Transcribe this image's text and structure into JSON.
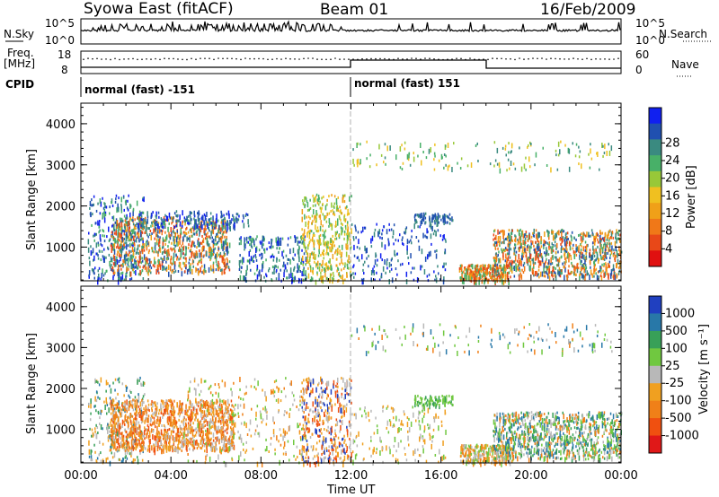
{
  "header": {
    "station": "Syowa East (fitACF)",
    "beam": "Beam 01",
    "date": "16/Feb/2009"
  },
  "strip_labels": {
    "nsky": "N.Sky",
    "nsearch": "N.Search",
    "freq_line1": "Freq.",
    "freq_line2": "[MHz]",
    "nave": "Nave",
    "cpid": "CPID",
    "cpid_left": "normal (fast) -151",
    "cpid_right": "normal (fast) 151",
    "noise_tick_top": "10^5",
    "noise_tick_bottom": "10^0",
    "freq_tick_top": "18",
    "freq_tick_bottom": "8",
    "nave_tick_top": "60",
    "nave_tick_bottom": "0"
  },
  "chart_data": [
    {
      "type": "heatmap",
      "title": "",
      "ylabel": "Slant Range [km]",
      "xlabel": "Time UT",
      "xlim": [
        "00:00",
        "24:00"
      ],
      "ylim": [
        180,
        4500
      ],
      "x_ticks": [
        "00:00",
        "04:00",
        "08:00",
        "12:00",
        "16:00",
        "20:00",
        "00:00"
      ],
      "y_ticks": [
        "1000",
        "2000",
        "3000",
        "4000"
      ],
      "colorbar": {
        "label": "Power [dB]",
        "ticks": [
          "4",
          "8",
          "12",
          "16",
          "20",
          "24",
          "28"
        ],
        "colors": [
          "#1020f0",
          "#2050b0",
          "#3a8a80",
          "#48b068",
          "#98c838",
          "#f0c020",
          "#f0a018",
          "#f07818",
          "#e84818",
          "#e01010"
        ]
      }
    },
    {
      "type": "heatmap",
      "title": "",
      "ylabel": "Slant Range [km]",
      "xlabel": "Time UT",
      "xlim": [
        "00:00",
        "24:00"
      ],
      "ylim": [
        180,
        4500
      ],
      "x_ticks": [
        "00:00",
        "04:00",
        "08:00",
        "12:00",
        "16:00",
        "20:00",
        "00:00"
      ],
      "y_ticks": [
        "1000",
        "2000",
        "3000",
        "4000"
      ],
      "colorbar": {
        "label": "Velocity [m s⁻¹]",
        "ticks": [
          "1000",
          "500",
          "100",
          "25",
          "-25",
          "-100",
          "-500",
          "-1000"
        ],
        "colors": [
          "#2040c0",
          "#2878a8",
          "#38a058",
          "#70c840",
          "#b8b8b8",
          "#f0a020",
          "#f08018",
          "#f05010",
          "#e01818"
        ]
      }
    }
  ],
  "scatter_regions": {
    "power": [
      {
        "t0": 0.3,
        "t1": 2.8,
        "r0": 200,
        "r1": 2300,
        "n": 320,
        "colors": [
          "#2050b0",
          "#3a8a80",
          "#48b068",
          "#1020f0"
        ]
      },
      {
        "t0": 1.3,
        "t1": 6.6,
        "r0": 400,
        "r1": 1750,
        "n": 900,
        "colors": [
          "#3a8a80",
          "#48b068",
          "#f0a018",
          "#f07818",
          "#2050b0",
          "#e84818"
        ]
      },
      {
        "t0": 2.5,
        "t1": 7.5,
        "r0": 1500,
        "r1": 1900,
        "n": 150,
        "colors": [
          "#2050b0",
          "#1020f0",
          "#3a8a80"
        ]
      },
      {
        "t0": 7.0,
        "t1": 10.0,
        "r0": 200,
        "r1": 1300,
        "n": 240,
        "colors": [
          "#2050b0",
          "#3a8a80",
          "#48b068",
          "#1020f0"
        ]
      },
      {
        "t0": 9.8,
        "t1": 12.0,
        "r0": 200,
        "r1": 2300,
        "n": 420,
        "colors": [
          "#f0c020",
          "#f0a018",
          "#98c838",
          "#48b068"
        ]
      },
      {
        "t0": 12.0,
        "t1": 16.2,
        "r0": 200,
        "r1": 1600,
        "n": 200,
        "colors": [
          "#2050b0",
          "#3a8a80",
          "#1020f0"
        ]
      },
      {
        "t0": 12.0,
        "t1": 23.6,
        "r0": 2900,
        "r1": 3600,
        "n": 150,
        "colors": [
          "#98c838",
          "#f0c020",
          "#3a8a80",
          "#48b068"
        ]
      },
      {
        "t0": 14.8,
        "t1": 16.5,
        "r0": 1600,
        "r1": 1850,
        "n": 90,
        "colors": [
          "#2050b0",
          "#3a8a80"
        ]
      },
      {
        "t0": 16.8,
        "t1": 19.0,
        "r0": 200,
        "r1": 600,
        "n": 260,
        "colors": [
          "#f07818",
          "#f0a018",
          "#e84818",
          "#48b068"
        ]
      },
      {
        "t0": 18.3,
        "t1": 24.0,
        "r0": 300,
        "r1": 1450,
        "n": 900,
        "colors": [
          "#3a8a80",
          "#48b068",
          "#f07818",
          "#e84818",
          "#f0a018",
          "#2050b0"
        ]
      }
    ],
    "velocity": [
      {
        "t0": 0.3,
        "t1": 2.8,
        "r0": 200,
        "r1": 2300,
        "n": 260,
        "colors": [
          "#2878a8",
          "#38a058",
          "#b8b8b8",
          "#f0a020"
        ]
      },
      {
        "t0": 1.3,
        "t1": 6.8,
        "r0": 500,
        "r1": 1750,
        "n": 1100,
        "colors": [
          "#f08018",
          "#f0a020",
          "#f05010",
          "#f08018",
          "#b8b8b8"
        ]
      },
      {
        "t0": 4.5,
        "t1": 10.0,
        "r0": 200,
        "r1": 2300,
        "n": 320,
        "colors": [
          "#b8b8b8",
          "#f0a020",
          "#70c840",
          "#f08018"
        ]
      },
      {
        "t0": 9.8,
        "t1": 12.0,
        "r0": 200,
        "r1": 2300,
        "n": 380,
        "colors": [
          "#b8b8b8",
          "#f0a020",
          "#f05010",
          "#2040c0"
        ]
      },
      {
        "t0": 12.0,
        "t1": 16.2,
        "r0": 200,
        "r1": 1600,
        "n": 160,
        "colors": [
          "#b8b8b8",
          "#70c840",
          "#f0a020"
        ]
      },
      {
        "t0": 12.0,
        "t1": 23.6,
        "r0": 2900,
        "r1": 3600,
        "n": 140,
        "colors": [
          "#70c840",
          "#f08018",
          "#b8b8b8",
          "#2878a8"
        ]
      },
      {
        "t0": 14.8,
        "t1": 16.5,
        "r0": 1600,
        "r1": 1850,
        "n": 80,
        "colors": [
          "#70c840",
          "#38a058"
        ]
      },
      {
        "t0": 16.8,
        "t1": 19.2,
        "r0": 200,
        "r1": 650,
        "n": 260,
        "colors": [
          "#f0a020",
          "#f08018",
          "#70c840",
          "#b8b8b8"
        ]
      },
      {
        "t0": 18.3,
        "t1": 24.0,
        "r0": 300,
        "r1": 1450,
        "n": 900,
        "colors": [
          "#38a058",
          "#70c840",
          "#2878a8",
          "#f08018",
          "#b8b8b8"
        ]
      }
    ]
  }
}
